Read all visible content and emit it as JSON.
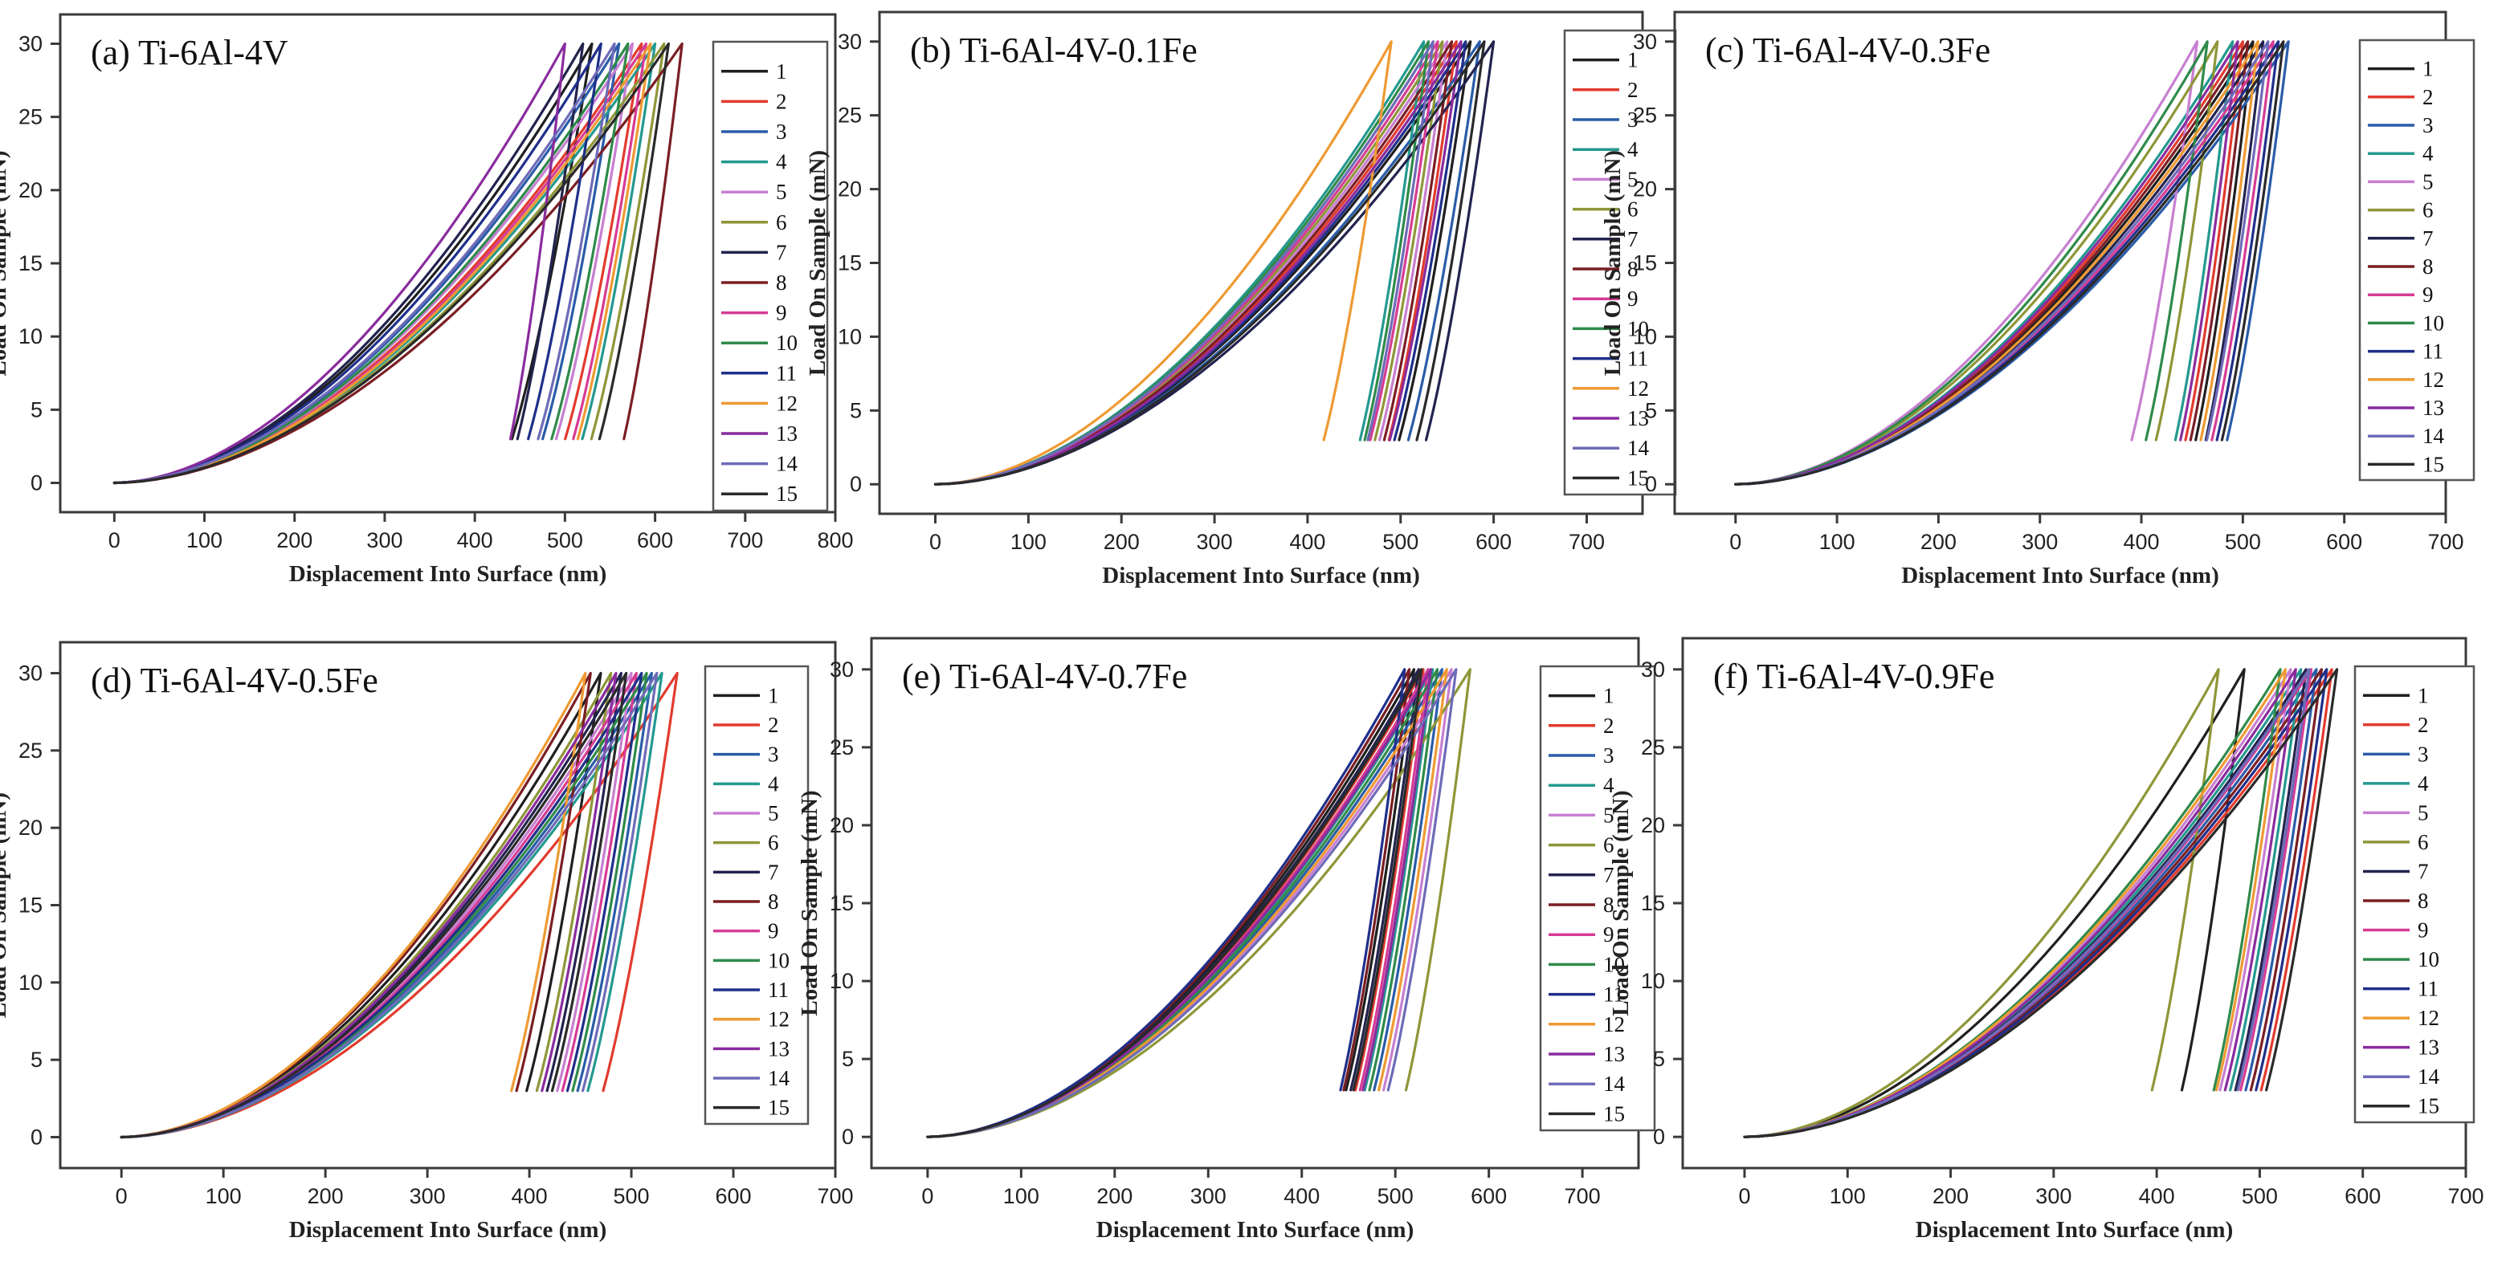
{
  "figure": {
    "colors": [
      "#1f1f1f",
      "#e23b2e",
      "#2a5ca8",
      "#24998f",
      "#c77fd1",
      "#8e9638",
      "#23234f",
      "#7a1e24",
      "#d63c94",
      "#2f8a4a",
      "#1f2f8a",
      "#ee9a33",
      "#8a2c9e",
      "#6e6bb8",
      "#2a2a2a"
    ]
  },
  "chart_data": [
    {
      "panel": "a",
      "type": "line",
      "title": "(a) Ti-6Al-4V",
      "xlabel": "Displacement Into Surface (nm)",
      "ylabel": "Load On Sample (mN)",
      "xlim": [
        -60,
        800
      ],
      "ylim": [
        -2,
        32
      ],
      "xticks": [
        "0",
        "100",
        "200",
        "300",
        "400",
        "500",
        "600",
        "700",
        "800"
      ],
      "yticks": [
        "0",
        "5",
        "10",
        "15",
        "20",
        "25",
        "30"
      ],
      "legend": [
        "1",
        "2",
        "3",
        "4",
        "5",
        "6",
        "7",
        "8",
        "9",
        "10",
        "11",
        "12",
        "13",
        "14",
        "15"
      ],
      "series": [
        {
          "name": "1",
          "max_displacement": 530,
          "residual_displacement": 420
        },
        {
          "name": "2",
          "max_displacement": 585,
          "residual_displacement": 480
        },
        {
          "name": "3",
          "max_displacement": 560,
          "residual_displacement": 455
        },
        {
          "name": "4",
          "max_displacement": 600,
          "residual_displacement": 500
        },
        {
          "name": "5",
          "max_displacement": 575,
          "residual_displacement": 470
        },
        {
          "name": "6",
          "max_displacement": 610,
          "residual_displacement": 510
        },
        {
          "name": "7",
          "max_displacement": 520,
          "residual_displacement": 430
        },
        {
          "name": "8",
          "max_displacement": 630,
          "residual_displacement": 550
        },
        {
          "name": "9",
          "max_displacement": 590,
          "residual_displacement": 490
        },
        {
          "name": "10",
          "max_displacement": 570,
          "residual_displacement": 465
        },
        {
          "name": "11",
          "max_displacement": 540,
          "residual_displacement": 440
        },
        {
          "name": "12",
          "max_displacement": 595,
          "residual_displacement": 495
        },
        {
          "name": "13",
          "max_displacement": 500,
          "residual_displacement": 425
        },
        {
          "name": "14",
          "max_displacement": 555,
          "residual_displacement": 450
        },
        {
          "name": "15",
          "max_displacement": 615,
          "residual_displacement": 520
        }
      ]
    },
    {
      "panel": "b",
      "type": "line",
      "title": "(b) Ti-6Al-4V-0.1Fe",
      "xlabel": "Displacement Into Surface (nm)",
      "ylabel": "Load On Sample (mN)",
      "xlim": [
        -60,
        760
      ],
      "ylim": [
        -2,
        32
      ],
      "xticks": [
        "0",
        "100",
        "200",
        "300",
        "400",
        "500",
        "600",
        "700"
      ],
      "yticks": [
        "0",
        "5",
        "10",
        "15",
        "20",
        "25",
        "30"
      ],
      "legend": [
        "1",
        "2",
        "3",
        "4",
        "5",
        "6",
        "7",
        "8",
        "9",
        "10",
        "11",
        "12",
        "13",
        "14",
        "15"
      ],
      "series": [
        {
          "name": "1",
          "max_displacement": 575,
          "residual_displacement": 480
        },
        {
          "name": "2",
          "max_displacement": 560,
          "residual_displacement": 470
        },
        {
          "name": "3",
          "max_displacement": 585,
          "residual_displacement": 490
        },
        {
          "name": "4",
          "max_displacement": 525,
          "residual_displacement": 440
        },
        {
          "name": "5",
          "max_displacement": 550,
          "residual_displacement": 460
        },
        {
          "name": "6",
          "max_displacement": 545,
          "residual_displacement": 455
        },
        {
          "name": "7",
          "max_displacement": 600,
          "residual_displacement": 510
        },
        {
          "name": "8",
          "max_displacement": 555,
          "residual_displacement": 465
        },
        {
          "name": "9",
          "max_displacement": 540,
          "residual_displacement": 450
        },
        {
          "name": "10",
          "max_displacement": 530,
          "residual_displacement": 445
        },
        {
          "name": "11",
          "max_displacement": 570,
          "residual_displacement": 475
        },
        {
          "name": "12",
          "max_displacement": 490,
          "residual_displacement": 400
        },
        {
          "name": "13",
          "max_displacement": 565,
          "residual_displacement": 470
        },
        {
          "name": "14",
          "max_displacement": 535,
          "residual_displacement": 448
        },
        {
          "name": "15",
          "max_displacement": 590,
          "residual_displacement": 500
        }
      ]
    },
    {
      "panel": "c",
      "type": "line",
      "title": "(c) Ti-6Al-4V-0.3Fe",
      "xlabel": "Displacement Into Surface (nm)",
      "ylabel": "Load On Sample (mN)",
      "xlim": [
        -60,
        700
      ],
      "ylim": [
        -2,
        32
      ],
      "xticks": [
        "0",
        "100",
        "200",
        "300",
        "400",
        "500",
        "600",
        "700"
      ],
      "yticks": [
        "0",
        "5",
        "10",
        "15",
        "20",
        "25",
        "30"
      ],
      "legend": [
        "1",
        "2",
        "3",
        "4",
        "5",
        "6",
        "7",
        "8",
        "9",
        "10",
        "11",
        "12",
        "13",
        "14",
        "15"
      ],
      "series": [
        {
          "name": "1",
          "max_displacement": 510,
          "residual_displacement": 440
        },
        {
          "name": "2",
          "max_displacement": 500,
          "residual_displacement": 430
        },
        {
          "name": "3",
          "max_displacement": 545,
          "residual_displacement": 470
        },
        {
          "name": "4",
          "max_displacement": 490,
          "residual_displacement": 420
        },
        {
          "name": "5",
          "max_displacement": 455,
          "residual_displacement": 375
        },
        {
          "name": "6",
          "max_displacement": 475,
          "residual_displacement": 400
        },
        {
          "name": "7",
          "max_displacement": 520,
          "residual_displacement": 450
        },
        {
          "name": "8",
          "max_displacement": 505,
          "residual_displacement": 435
        },
        {
          "name": "9",
          "max_displacement": 530,
          "residual_displacement": 455
        },
        {
          "name": "10",
          "max_displacement": 465,
          "residual_displacement": 390
        },
        {
          "name": "11",
          "max_displacement": 535,
          "residual_displacement": 460
        },
        {
          "name": "12",
          "max_displacement": 515,
          "residual_displacement": 445
        },
        {
          "name": "13",
          "max_displacement": 495,
          "residual_displacement": 425
        },
        {
          "name": "14",
          "max_displacement": 525,
          "residual_displacement": 450
        },
        {
          "name": "15",
          "max_displacement": 540,
          "residual_displacement": 465
        }
      ]
    },
    {
      "panel": "d",
      "type": "line",
      "title": "(d) Ti-6Al-4V-0.5Fe",
      "xlabel": "Displacement Into Surface (nm)",
      "ylabel": "Load On Sample (mN)",
      "xlim": [
        -60,
        700
      ],
      "ylim": [
        -2,
        32
      ],
      "xticks": [
        "0",
        "100",
        "200",
        "300",
        "400",
        "500",
        "600",
        "700"
      ],
      "yticks": [
        "0",
        "5",
        "10",
        "15",
        "20",
        "25",
        "30"
      ],
      "legend": [
        "1",
        "2",
        "3",
        "4",
        "5",
        "6",
        "7",
        "8",
        "9",
        "10",
        "11",
        "12",
        "13",
        "14",
        "15"
      ],
      "series": [
        {
          "name": "1",
          "max_displacement": 470,
          "residual_displacement": 380
        },
        {
          "name": "2",
          "max_displacement": 545,
          "residual_displacement": 455
        },
        {
          "name": "3",
          "max_displacement": 520,
          "residual_displacement": 430
        },
        {
          "name": "4",
          "max_displacement": 530,
          "residual_displacement": 440
        },
        {
          "name": "5",
          "max_displacement": 500,
          "residual_displacement": 410
        },
        {
          "name": "6",
          "max_displacement": 480,
          "residual_displacement": 390
        },
        {
          "name": "7",
          "max_displacement": 490,
          "residual_displacement": 400
        },
        {
          "name": "8",
          "max_displacement": 460,
          "residual_displacement": 370
        },
        {
          "name": "9",
          "max_displacement": 505,
          "residual_displacement": 415
        },
        {
          "name": "10",
          "max_displacement": 515,
          "residual_displacement": 425
        },
        {
          "name": "11",
          "max_displacement": 510,
          "residual_displacement": 420
        },
        {
          "name": "12",
          "max_displacement": 455,
          "residual_displacement": 365
        },
        {
          "name": "13",
          "max_displacement": 485,
          "residual_displacement": 395
        },
        {
          "name": "14",
          "max_displacement": 525,
          "residual_displacement": 435
        },
        {
          "name": "15",
          "max_displacement": 495,
          "residual_displacement": 405
        }
      ]
    },
    {
      "panel": "e",
      "type": "line",
      "title": "(e) Ti-6Al-4V-0.7Fe",
      "xlabel": "Displacement Into Surface (nm)",
      "ylabel": "Load On Sample (mN)",
      "xlim": [
        -60,
        760
      ],
      "ylim": [
        -2,
        32
      ],
      "xticks": [
        "0",
        "100",
        "200",
        "300",
        "400",
        "500",
        "600",
        "700"
      ],
      "yticks": [
        "0",
        "5",
        "10",
        "15",
        "20",
        "25",
        "30"
      ],
      "legend": [
        "1",
        "2",
        "3",
        "4",
        "5",
        "6",
        "7",
        "8",
        "9",
        "10",
        "11",
        "12",
        "13",
        "14",
        "15"
      ],
      "series": [
        {
          "name": "1",
          "max_displacement": 520,
          "residual_displacement": 430
        },
        {
          "name": "2",
          "max_displacement": 530,
          "residual_displacement": 440
        },
        {
          "name": "3",
          "max_displacement": 550,
          "residual_displacement": 460
        },
        {
          "name": "4",
          "max_displacement": 540,
          "residual_displacement": 450
        },
        {
          "name": "5",
          "max_displacement": 560,
          "residual_displacement": 470
        },
        {
          "name": "6",
          "max_displacement": 580,
          "residual_displacement": 495
        },
        {
          "name": "7",
          "max_displacement": 525,
          "residual_displacement": 435
        },
        {
          "name": "8",
          "max_displacement": 515,
          "residual_displacement": 428
        },
        {
          "name": "9",
          "max_displacement": 535,
          "residual_displacement": 445
        },
        {
          "name": "10",
          "max_displacement": 545,
          "residual_displacement": 455
        },
        {
          "name": "11",
          "max_displacement": 510,
          "residual_displacement": 425
        },
        {
          "name": "12",
          "max_displacement": 555,
          "residual_displacement": 465
        },
        {
          "name": "13",
          "max_displacement": 538,
          "residual_displacement": 448
        },
        {
          "name": "14",
          "max_displacement": 565,
          "residual_displacement": 475
        },
        {
          "name": "15",
          "max_displacement": 528,
          "residual_displacement": 438
        }
      ]
    },
    {
      "panel": "f",
      "type": "line",
      "title": "(f) Ti-6Al-4V-0.9Fe",
      "xlabel": "Displacement Into Surface (nm)",
      "ylabel": "Load On Sample (mN)",
      "xlim": [
        -60,
        700
      ],
      "ylim": [
        -2,
        32
      ],
      "xticks": [
        "0",
        "100",
        "200",
        "300",
        "400",
        "500",
        "600",
        "700"
      ],
      "yticks": [
        "0",
        "5",
        "10",
        "15",
        "20",
        "25",
        "30"
      ],
      "legend": [
        "1",
        "2",
        "3",
        "4",
        "5",
        "6",
        "7",
        "8",
        "9",
        "10",
        "11",
        "12",
        "13",
        "14",
        "15"
      ],
      "series": [
        {
          "name": "1",
          "max_displacement": 485,
          "residual_displacement": 410
        },
        {
          "name": "2",
          "max_displacement": 570,
          "residual_displacement": 485
        },
        {
          "name": "3",
          "max_displacement": 555,
          "residual_displacement": 470
        },
        {
          "name": "4",
          "max_displacement": 540,
          "residual_displacement": 455
        },
        {
          "name": "5",
          "max_displacement": 530,
          "residual_displacement": 445
        },
        {
          "name": "6",
          "max_displacement": 460,
          "residual_displacement": 380
        },
        {
          "name": "7",
          "max_displacement": 545,
          "residual_displacement": 460
        },
        {
          "name": "8",
          "max_displacement": 560,
          "residual_displacement": 475
        },
        {
          "name": "9",
          "max_displacement": 550,
          "residual_displacement": 465
        },
        {
          "name": "10",
          "max_displacement": 520,
          "residual_displacement": 440
        },
        {
          "name": "11",
          "max_displacement": 565,
          "residual_displacement": 480
        },
        {
          "name": "12",
          "max_displacement": 525,
          "residual_displacement": 442
        },
        {
          "name": "13",
          "max_displacement": 535,
          "residual_displacement": 450
        },
        {
          "name": "14",
          "max_displacement": 548,
          "residual_displacement": 462
        },
        {
          "name": "15",
          "max_displacement": 575,
          "residual_displacement": 490
        }
      ]
    }
  ]
}
